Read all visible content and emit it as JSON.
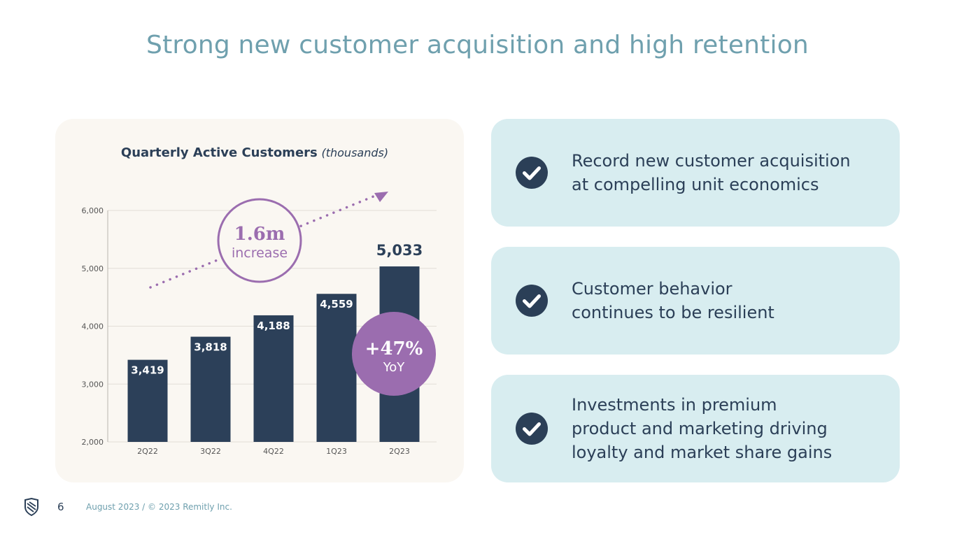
{
  "title": "Strong new customer acquisition and high retention",
  "chart": {
    "title_main": "Quarterly Active Customers",
    "title_unit": "(thousands)",
    "increase_value": "1.6m",
    "increase_label": "increase",
    "yoy_value": "+47%",
    "yoy_label": "YoY",
    "accent_color": "#9b6daf",
    "bar_color": "#2c4059"
  },
  "chart_data": {
    "type": "bar",
    "categories": [
      "2Q22",
      "3Q22",
      "4Q22",
      "1Q23",
      "2Q23"
    ],
    "values": [
      3419,
      3818,
      4188,
      4559,
      5033
    ],
    "value_labels": [
      "3,419",
      "3,818",
      "4,188",
      "4,559",
      "5,033"
    ],
    "ylim": [
      2000,
      6000
    ],
    "yticks": [
      2000,
      3000,
      4000,
      5000,
      6000
    ],
    "ytick_labels": [
      "2,000",
      "3,000",
      "4,000",
      "5,000",
      "6,000"
    ],
    "grid": true,
    "title": "Quarterly Active Customers (thousands)",
    "xlabel": "",
    "ylabel": ""
  },
  "points": [
    {
      "lines": [
        "Record new customer acquisition",
        "at compelling unit economics"
      ],
      "icon": "check-circle-icon"
    },
    {
      "lines": [
        "Customer behavior",
        "continues to be resilient"
      ],
      "icon": "check-circle-icon"
    },
    {
      "lines": [
        "Investments in premium",
        "product and marketing driving",
        "loyalty and market share gains"
      ],
      "icon": "check-circle-icon"
    }
  ],
  "footer": {
    "page": "6",
    "text": "August 2023 / © 2023 Remitly Inc.",
    "logo_icon": "remitly-logo-icon"
  },
  "colors": {
    "title": "#6fa0ae",
    "navy": "#2b3f57",
    "card_bg": "#faf7f2",
    "point_bg": "#d8edf0"
  }
}
